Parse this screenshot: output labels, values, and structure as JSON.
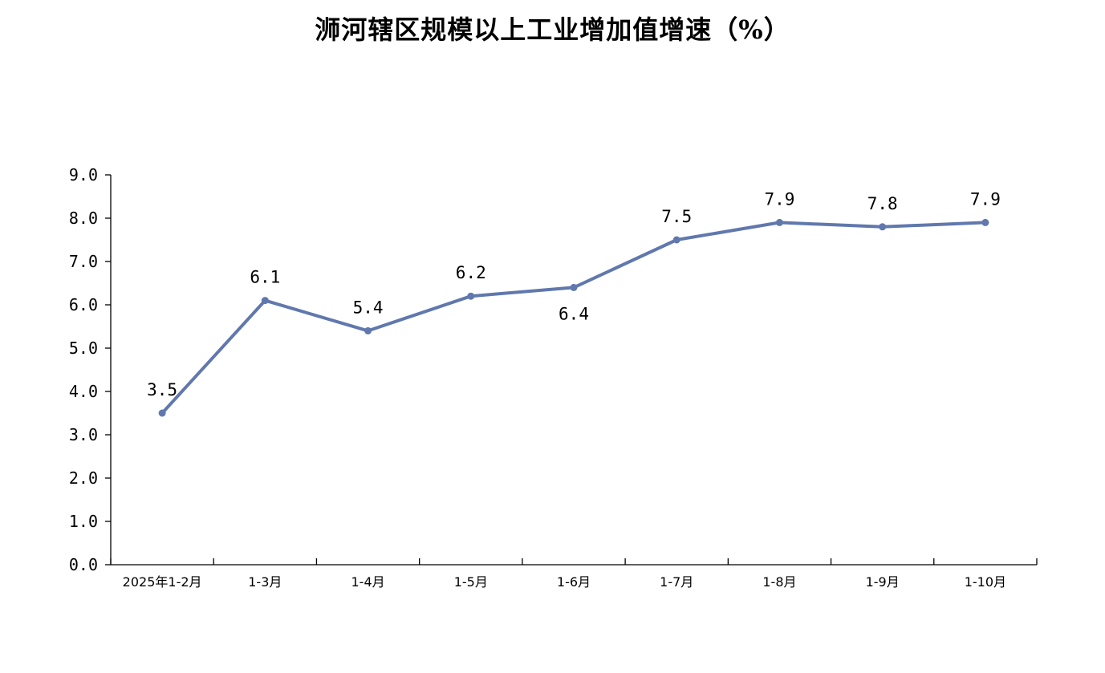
{
  "chart_data": {
    "type": "line",
    "title": "浉河辖区规模以上工业增加值增速（%）",
    "categories": [
      "2025年1-2月",
      "1-3月",
      "1-4月",
      "1-5月",
      "1-6月",
      "1-7月",
      "1-8月",
      "1-9月",
      "1-10月"
    ],
    "series": [
      {
        "values": [
          3.5,
          6.1,
          5.4,
          6.2,
          6.4,
          7.5,
          7.9,
          7.8,
          7.9
        ],
        "data_labels": [
          "3.5",
          "6.1",
          "5.4",
          "6.2",
          "6.4",
          "7.5",
          "7.9",
          "7.8",
          "7.9"
        ]
      }
    ],
    "y_ticks": [
      "0.0",
      "1.0",
      "2.0",
      "3.0",
      "4.0",
      "5.0",
      "6.0",
      "7.0",
      "8.0",
      "9.0"
    ],
    "ylim": [
      0,
      9
    ],
    "line_color": "#6078AD",
    "grid": false,
    "legend": "none"
  }
}
